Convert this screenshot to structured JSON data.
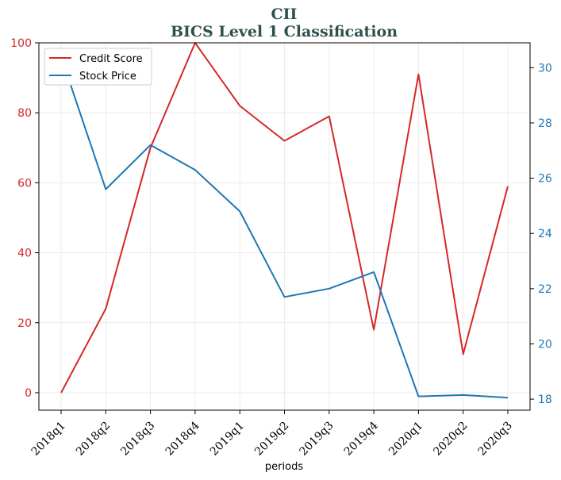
{
  "chart_data": {
    "type": "line",
    "title": "CII",
    "subtitle": "BICS Level 1 Classification",
    "xlabel": "periods",
    "categories": [
      "2018q1",
      "2018q2",
      "2018q3",
      "2018q4",
      "2019q1",
      "2019q2",
      "2019q3",
      "2019q4",
      "2020q1",
      "2020q2",
      "2020q3"
    ],
    "series": [
      {
        "name": "Credit Score",
        "axis": "left",
        "color": "#d62728",
        "values": [
          0,
          24,
          70,
          100,
          82,
          72,
          79,
          18,
          91,
          11,
          59
        ]
      },
      {
        "name": "Stock Price",
        "axis": "right",
        "color": "#1f77b4",
        "values": [
          30.4,
          25.6,
          27.2,
          26.3,
          24.8,
          21.7,
          22.0,
          22.6,
          18.1,
          18.15,
          18.05
        ]
      }
    ],
    "y_left": {
      "ylim": [
        -5,
        100
      ],
      "ticks": [
        0,
        20,
        40,
        60,
        80,
        100
      ],
      "color": "#d62728"
    },
    "y_right": {
      "ylim": [
        17.6,
        30.9
      ],
      "ticks": [
        18,
        20,
        22,
        24,
        26,
        28,
        30
      ],
      "color": "#1f77b4"
    },
    "grid": true,
    "legend": {
      "placement": "top-left"
    },
    "title_color": "#2f4f4f"
  }
}
